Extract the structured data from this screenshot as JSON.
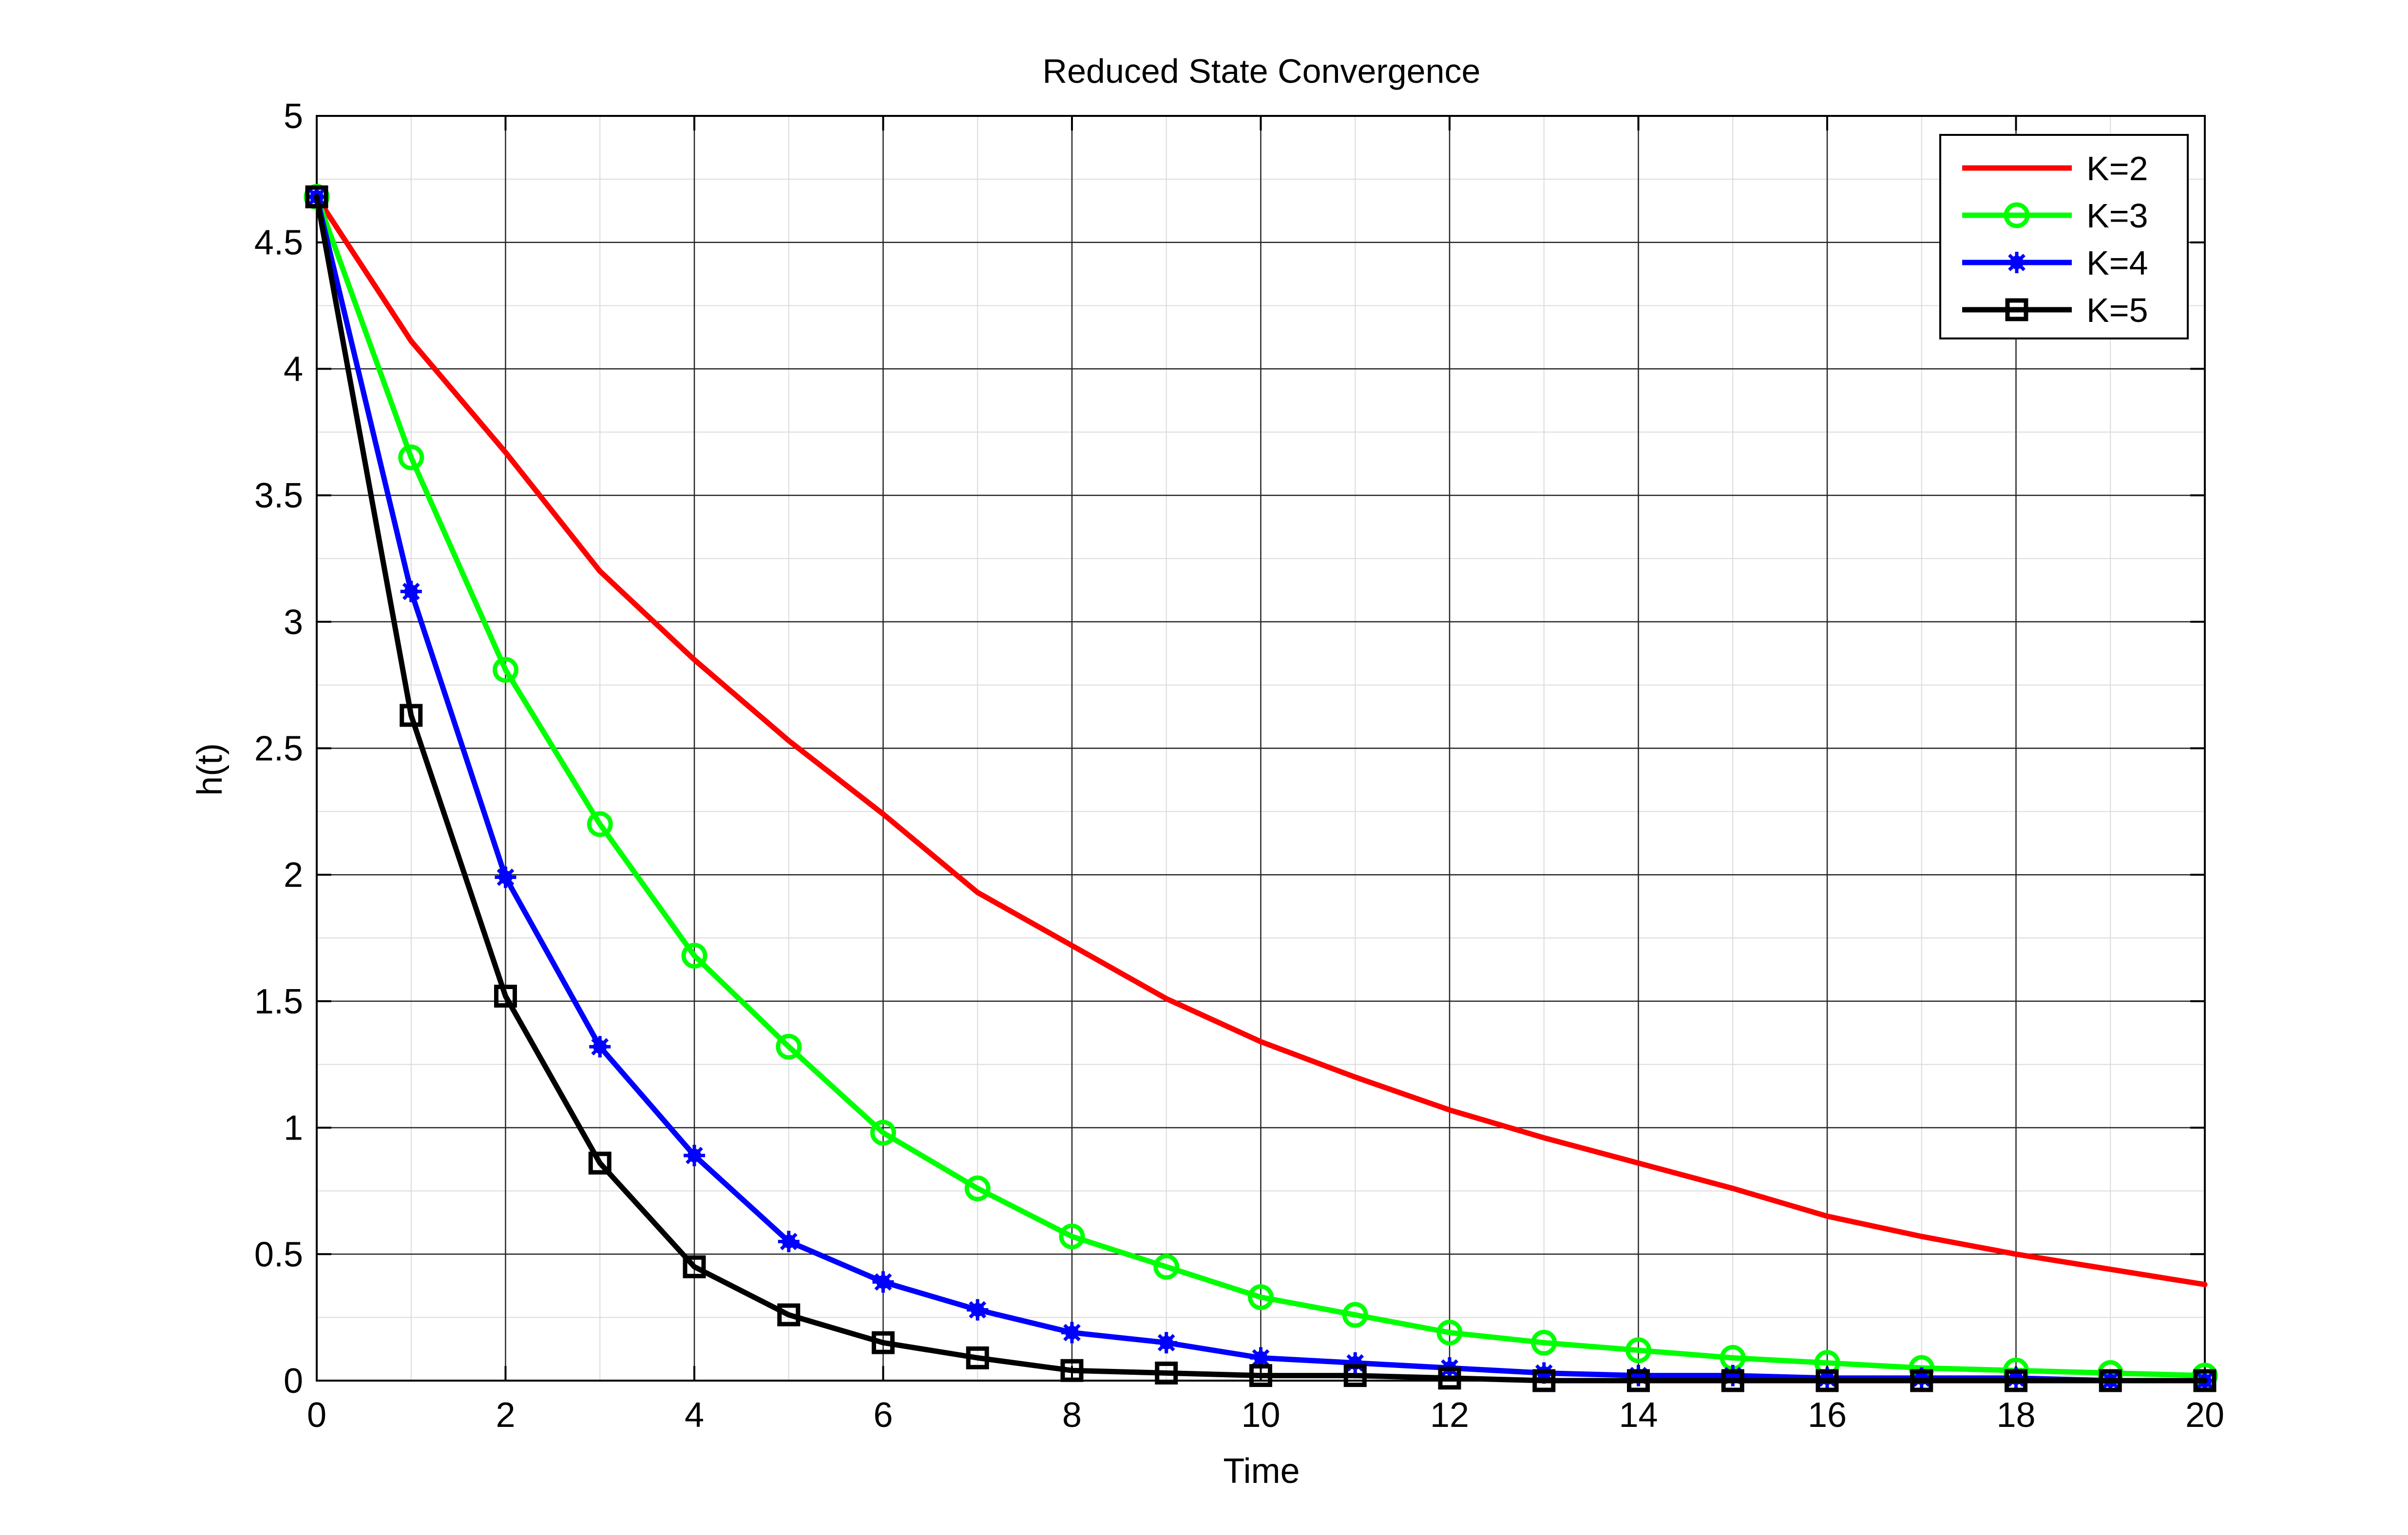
{
  "chart_data": {
    "type": "line",
    "title": "Reduced State Convergence",
    "xlabel": "Time",
    "ylabel": "h(t)",
    "xlim": [
      0,
      20
    ],
    "ylim": [
      0,
      5
    ],
    "grid": true,
    "x_major_ticks": [
      0,
      2,
      4,
      6,
      8,
      10,
      12,
      14,
      16,
      18,
      20
    ],
    "x_tick_labels": [
      "0",
      "2",
      "4",
      "6",
      "8",
      "10",
      "12",
      "14",
      "16",
      "18",
      "20"
    ],
    "x_minor_step": 1,
    "y_major_ticks": [
      0,
      0.5,
      1,
      1.5,
      2,
      2.5,
      3,
      3.5,
      4,
      4.5,
      5
    ],
    "y_tick_labels": [
      "0",
      "0.5",
      "1",
      "1.5",
      "2",
      "2.5",
      "3",
      "3.5",
      "4",
      "4.5",
      "5"
    ],
    "y_minor_step": 0.25,
    "legend_position": "top-right",
    "x": [
      0,
      1,
      2,
      3,
      4,
      5,
      6,
      7,
      8,
      9,
      10,
      11,
      12,
      13,
      14,
      15,
      16,
      17,
      18,
      19,
      20
    ],
    "series": [
      {
        "name": "K=2",
        "color": "#ff0000",
        "marker": "none",
        "values": [
          4.68,
          4.11,
          3.67,
          3.2,
          2.85,
          2.53,
          2.24,
          1.93,
          1.72,
          1.51,
          1.34,
          1.2,
          1.07,
          0.96,
          0.86,
          0.76,
          0.65,
          0.57,
          0.5,
          0.44,
          0.38
        ]
      },
      {
        "name": "K=3",
        "color": "#00ff00",
        "marker": "circle",
        "values": [
          4.68,
          3.65,
          2.81,
          2.2,
          1.68,
          1.32,
          0.98,
          0.76,
          0.57,
          0.45,
          0.33,
          0.26,
          0.19,
          0.15,
          0.12,
          0.09,
          0.07,
          0.05,
          0.04,
          0.03,
          0.02
        ]
      },
      {
        "name": "K=4",
        "color": "#0000ff",
        "marker": "asterisk-dot",
        "values": [
          4.68,
          3.12,
          1.99,
          1.32,
          0.89,
          0.55,
          0.39,
          0.28,
          0.19,
          0.15,
          0.09,
          0.07,
          0.05,
          0.03,
          0.02,
          0.02,
          0.01,
          0.01,
          0.01,
          0.0,
          0.0
        ]
      },
      {
        "name": "K=5",
        "color": "#000000",
        "marker": "square",
        "values": [
          4.68,
          2.63,
          1.52,
          0.86,
          0.45,
          0.26,
          0.15,
          0.09,
          0.04,
          0.03,
          0.02,
          0.02,
          0.01,
          0.0,
          0.0,
          0.0,
          0.0,
          0.0,
          0.0,
          0.0,
          0.0
        ]
      }
    ]
  }
}
